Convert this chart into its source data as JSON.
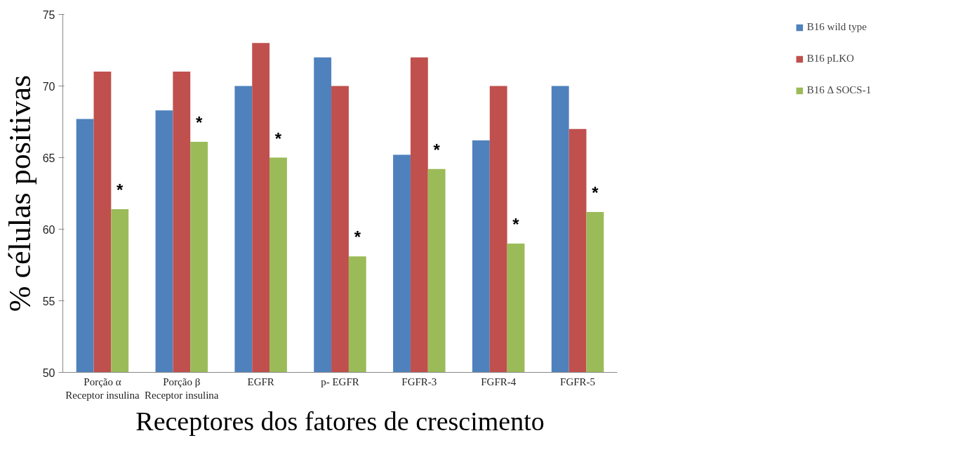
{
  "chart_data": {
    "type": "bar",
    "xlabel": "Receptores dos fatores de crescimento",
    "ylabel": "% células positivas",
    "categories": [
      "Porção α\nReceptor insulina",
      "Porção β\nReceptor insulina",
      "EGFR",
      "p- EGFR",
      "FGFR-3",
      "FGFR-4",
      "FGFR-5"
    ],
    "series": [
      {
        "name": "B16 wild type",
        "color": "#4f81bd",
        "values": [
          67.7,
          68.3,
          70.0,
          72.0,
          65.2,
          66.2,
          70.0
        ]
      },
      {
        "name": "B16 pLKO",
        "color": "#c0504d",
        "values": [
          71.0,
          71.0,
          73.0,
          70.0,
          72.0,
          70.0,
          67.0
        ]
      },
      {
        "name": "B16 Δ SOCS-1",
        "color": "#9bbb59",
        "values": [
          61.4,
          66.1,
          65.0,
          58.1,
          64.2,
          59.0,
          61.2
        ]
      }
    ],
    "annotations": [
      "*",
      "*",
      "*",
      "*",
      "*",
      "*",
      "*"
    ],
    "ylim": [
      50,
      75
    ],
    "yticks": [
      50,
      55,
      60,
      65,
      70,
      75
    ],
    "grid": false,
    "legend": "top right"
  }
}
